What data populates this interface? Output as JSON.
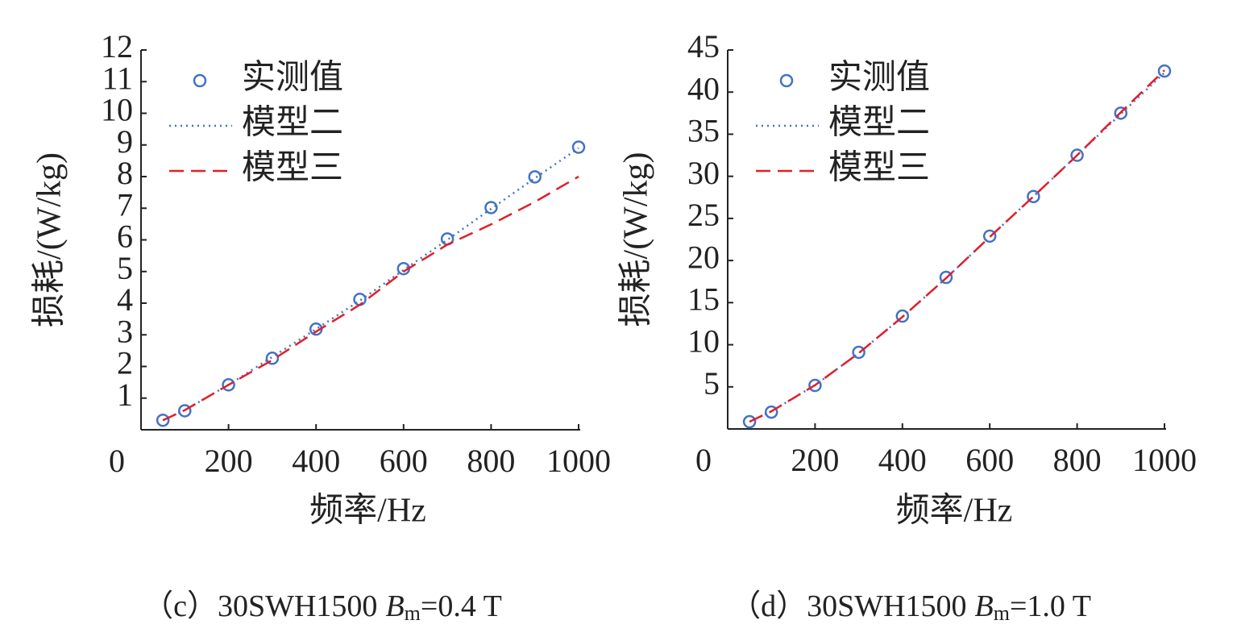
{
  "chart_data": [
    {
      "type": "line",
      "y_label": "损耗/(W/kg)",
      "x_label": "频率/Hz",
      "caption": {
        "prefix": "（c）30SWH1500",
        "symbol": "B",
        "subscript": "m",
        "suffix": "=0.4 T"
      },
      "x": [
        50,
        100,
        200,
        300,
        400,
        500,
        600,
        700,
        800,
        900,
        1000
      ],
      "xlim": [
        0,
        1000
      ],
      "xticks": [
        0,
        200,
        400,
        600,
        800,
        1000
      ],
      "ylim": [
        0,
        12
      ],
      "yticks": [
        1,
        2,
        3,
        4,
        5,
        6,
        7,
        8,
        9,
        10,
        11,
        12
      ],
      "series": [
        {
          "name": "实测值",
          "color": "#4472c4",
          "style": "marker",
          "values": [
            0.3,
            0.6,
            1.42,
            2.26,
            3.18,
            4.12,
            5.09,
            6.03,
            7.02,
            7.99,
            8.93
          ]
        },
        {
          "name": "模型二",
          "color": "#4472c4",
          "style": "dotted",
          "values": [
            0.3,
            0.62,
            1.42,
            2.3,
            3.18,
            4.08,
            5.05,
            6.0,
            6.98,
            7.95,
            8.9
          ]
        },
        {
          "name": "模型三",
          "color": "#e0202a",
          "style": "dashed",
          "values": [
            0.3,
            0.62,
            1.42,
            2.2,
            3.1,
            3.95,
            5.0,
            5.85,
            6.49,
            7.2,
            8.0
          ]
        }
      ]
    },
    {
      "type": "line",
      "y_label": "损耗/(W/kg)",
      "x_label": "频率/Hz",
      "caption": {
        "prefix": "（d）30SWH1500",
        "symbol": "B",
        "subscript": "m",
        "suffix": "=1.0 T"
      },
      "x": [
        50,
        100,
        200,
        300,
        400,
        500,
        600,
        700,
        800,
        900,
        1000
      ],
      "xlim": [
        0,
        1000
      ],
      "xticks": [
        0,
        200,
        400,
        600,
        800,
        1000
      ],
      "ylim": [
        0,
        45
      ],
      "yticks": [
        5,
        10,
        15,
        20,
        25,
        30,
        35,
        40,
        45
      ],
      "series": [
        {
          "name": "实测值",
          "color": "#4472c4",
          "style": "marker",
          "values": [
            0.86,
            2.0,
            5.17,
            9.1,
            13.4,
            18.0,
            22.9,
            27.6,
            32.5,
            37.5,
            42.5
          ]
        },
        {
          "name": "模型二",
          "color": "#4472c4",
          "style": "dotted",
          "values": [
            0.86,
            2.1,
            5.2,
            9.0,
            13.3,
            17.9,
            22.8,
            27.6,
            32.5,
            37.4,
            42.3
          ]
        },
        {
          "name": "模型三",
          "color": "#e0202a",
          "style": "dashed",
          "values": [
            0.86,
            2.1,
            5.2,
            9.0,
            13.3,
            17.9,
            22.8,
            27.6,
            32.5,
            37.6,
            42.6
          ]
        }
      ]
    }
  ]
}
